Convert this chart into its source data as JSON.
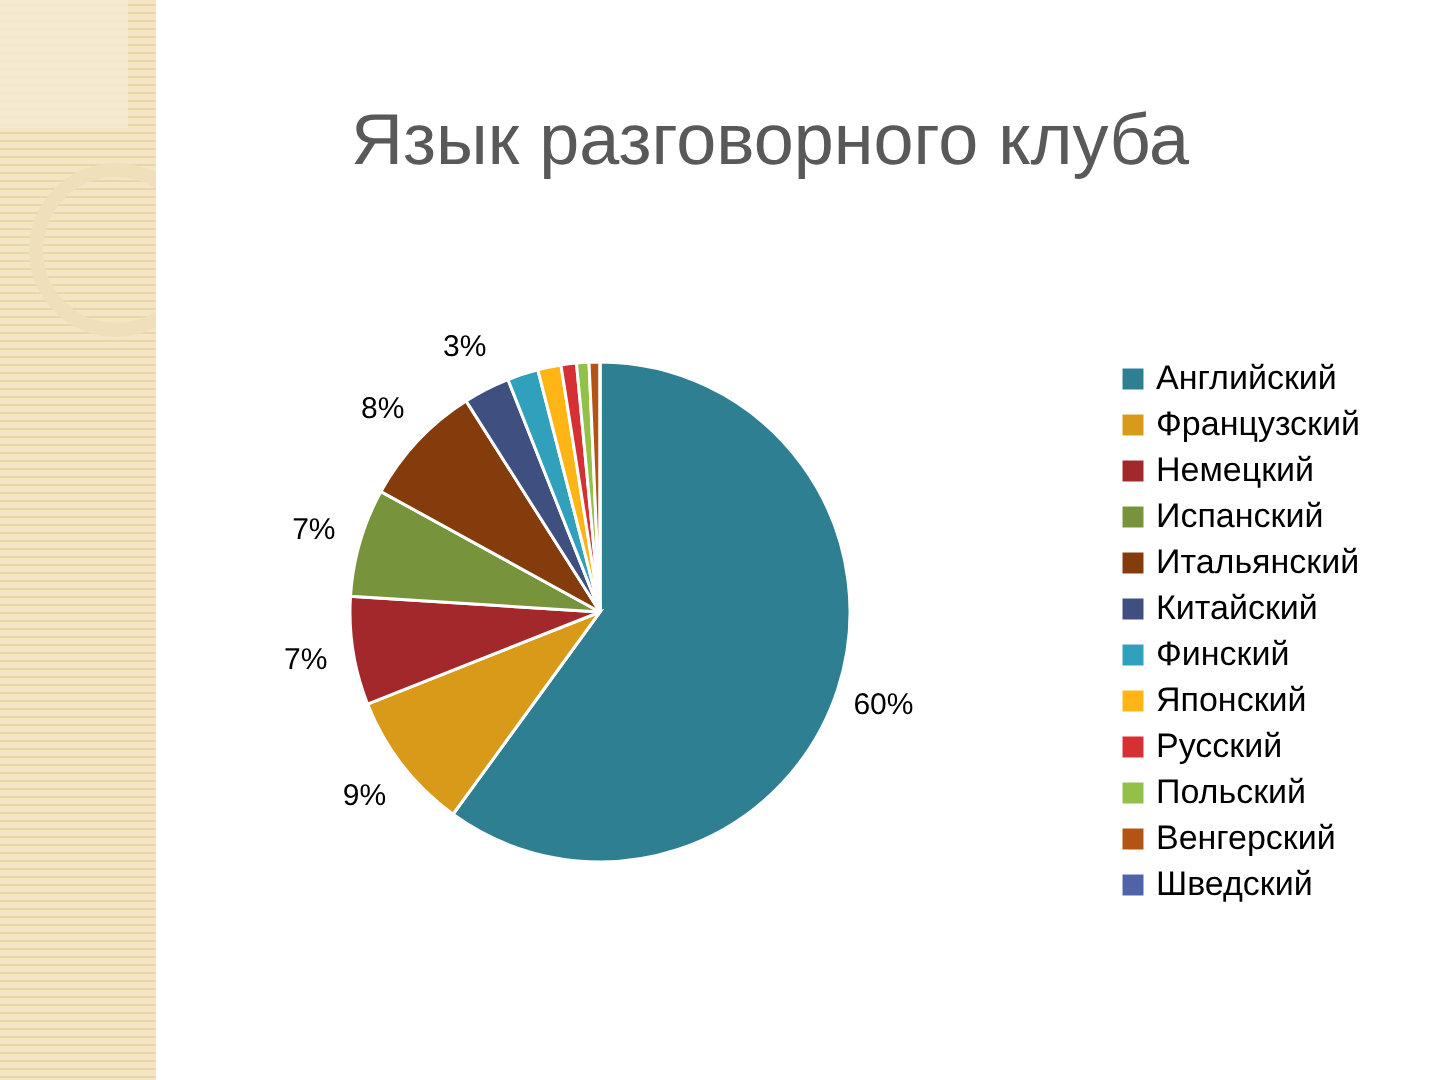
{
  "chart_data": {
    "type": "pie",
    "title": "Язык разговорного клуба",
    "categories": [
      "Английский",
      "Французский",
      "Немецкий",
      "Испанский",
      "Итальянский",
      "Китайский",
      "Финский",
      "Японский",
      "Русский",
      "Польский",
      "Венгерский",
      "Шведский"
    ],
    "values": [
      60,
      9,
      7,
      7,
      8,
      3,
      2,
      1.5,
      1,
      0.8,
      0.7,
      0
    ],
    "colors": [
      "#2f7f93",
      "#d99a1a",
      "#a3282c",
      "#77933c",
      "#843c0c",
      "#3f4f80",
      "#31a0bd",
      "#ffb515",
      "#d62f34",
      "#93c047",
      "#b35414",
      "#4f63a8"
    ],
    "value_labels": [
      "60%",
      "9%",
      "7%",
      "7%",
      "8%",
      "3%",
      null,
      null,
      null,
      null,
      null,
      null
    ],
    "legend": "right"
  }
}
